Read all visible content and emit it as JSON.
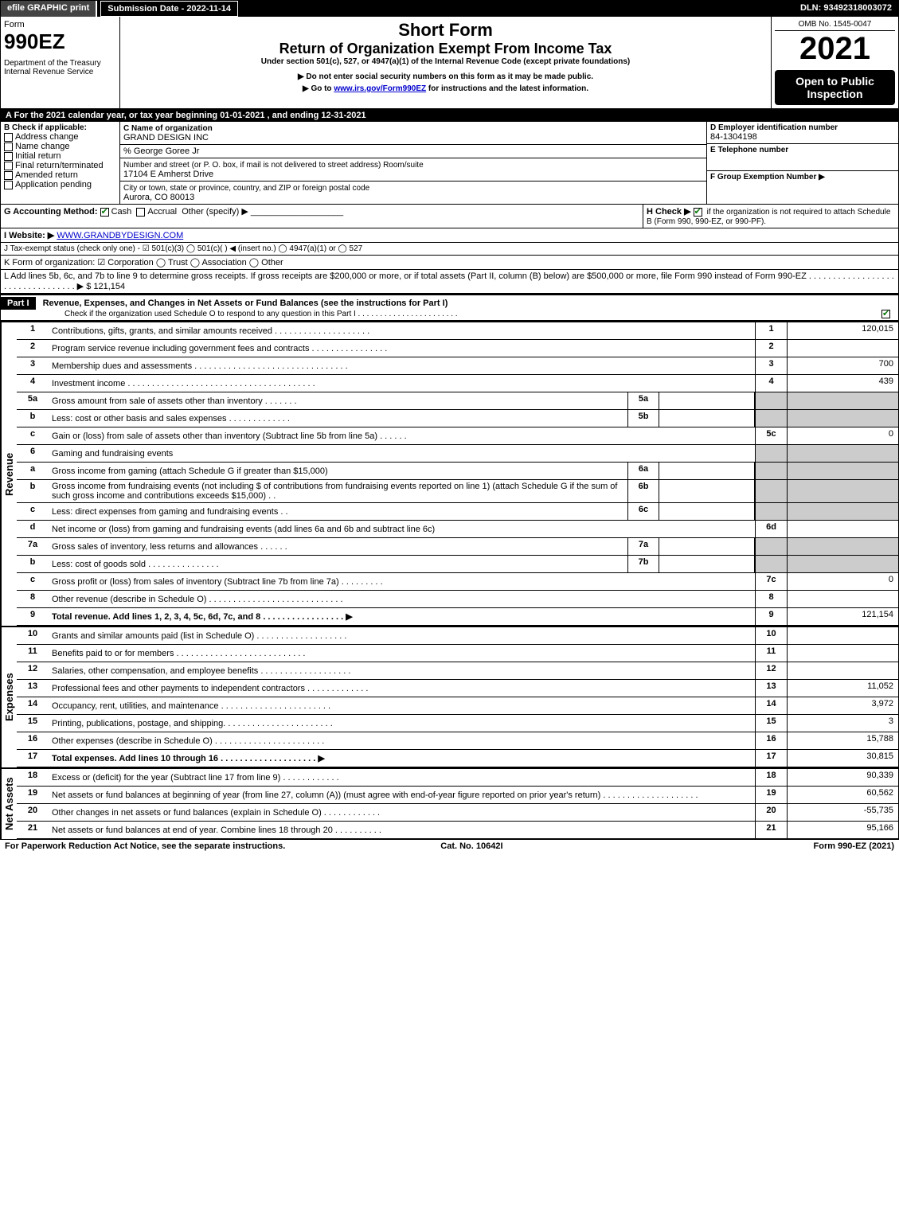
{
  "topbar": {
    "efile": "efile GRAPHIC print",
    "subdate_label": "Submission Date - 2022-11-14",
    "dln": "DLN: 93492318003072"
  },
  "header": {
    "form_word": "Form",
    "form_no": "990EZ",
    "dept": "Department of the Treasury\nInternal Revenue Service",
    "title1": "Short Form",
    "title2": "Return of Organization Exempt From Income Tax",
    "subtitle": "Under section 501(c), 527, or 4947(a)(1) of the Internal Revenue Code (except private foundations)",
    "note1": "▶ Do not enter social security numbers on this form as it may be made public.",
    "note2_pre": "▶ Go to ",
    "note2_link": "www.irs.gov/Form990EZ",
    "note2_post": " for instructions and the latest information.",
    "omb": "OMB No. 1545-0047",
    "year": "2021",
    "open": "Open to Public Inspection"
  },
  "secA": "A  For the 2021 calendar year, or tax year beginning 01-01-2021 , and ending 12-31-2021",
  "secB": {
    "label": "B  Check if applicable:",
    "items": [
      "Address change",
      "Name change",
      "Initial return",
      "Final return/terminated",
      "Amended return",
      "Application pending"
    ]
  },
  "secC": {
    "label": "C Name of organization",
    "org": "GRAND DESIGN INC",
    "care": "% George Goree Jr",
    "addr_label": "Number and street (or P. O. box, if mail is not delivered to street address)        Room/suite",
    "addr": "17104 E Amherst Drive",
    "city_label": "City or town, state or province, country, and ZIP or foreign postal code",
    "city": "Aurora, CO  80013"
  },
  "secD": {
    "label": "D Employer identification number",
    "val": "84-1304198"
  },
  "secE": {
    "label": "E Telephone number",
    "val": ""
  },
  "secF": {
    "label": "F Group Exemption Number  ▶",
    "val": ""
  },
  "secG": {
    "label": "G Accounting Method:",
    "cash": "Cash",
    "accr": "Accrual",
    "other": "Other (specify) ▶"
  },
  "secH": {
    "label": "H   Check ▶",
    "text": "if the organization is not required to attach Schedule B (Form 990, 990-EZ, or 990-PF)."
  },
  "secI": {
    "label": "I Website: ▶",
    "val": "WWW.GRANDBYDESIGN.COM"
  },
  "secJ": "J Tax-exempt status (check only one) - ☑ 501(c)(3)  ◯ 501(c)(  ) ◀ (insert no.)  ◯ 4947(a)(1) or  ◯ 527",
  "secK": "K Form of organization:  ☑ Corporation  ◯ Trust  ◯ Association  ◯ Other",
  "secL": {
    "text": "L Add lines 5b, 6c, and 7b to line 9 to determine gross receipts. If gross receipts are $200,000 or more, or if total assets (Part II, column (B) below) are $500,000 or more, file Form 990 instead of Form 990-EZ . . . . . . . . . . . . . . . . . . . . . . . . . . . . . . . . .  ▶ $",
    "val": "121,154"
  },
  "part1": {
    "hdr": "Part I",
    "title": "Revenue, Expenses, and Changes in Net Assets or Fund Balances (see the instructions for Part I)",
    "sub": "Check if the organization used Schedule O to respond to any question in this Part I . . . . . . . . . . . . . . . . . . . . . . .",
    "chk": true
  },
  "revenue_label": "Revenue",
  "expenses_label": "Expenses",
  "netassets_label": "Net Assets",
  "lines": {
    "1": {
      "n": "1",
      "d": "Contributions, gifts, grants, and similar amounts received . . . . . . . . . . . . . . . . . . . .",
      "c": "1",
      "v": "120,015"
    },
    "2": {
      "n": "2",
      "d": "Program service revenue including government fees and contracts . . . . . . . . . . . . . . . .",
      "c": "2",
      "v": ""
    },
    "3": {
      "n": "3",
      "d": "Membership dues and assessments . . . . . . . . . . . . . . . . . . . . . . . . . . . . . . . .",
      "c": "3",
      "v": "700"
    },
    "4": {
      "n": "4",
      "d": "Investment income . . . . . . . . . . . . . . . . . . . . . . . . . . . . . . . . . . . . . . .",
      "c": "4",
      "v": "439"
    },
    "5a": {
      "n": "5a",
      "d": "Gross amount from sale of assets other than inventory . . . . . . .",
      "sub": "5a"
    },
    "5b": {
      "n": "b",
      "d": "Less: cost or other basis and sales expenses . . . . . . . . . . . . .",
      "sub": "5b"
    },
    "5c": {
      "n": "c",
      "d": "Gain or (loss) from sale of assets other than inventory (Subtract line 5b from line 5a) . . . . . .",
      "c": "5c",
      "v": "0"
    },
    "6": {
      "n": "6",
      "d": "Gaming and fundraising events"
    },
    "6a": {
      "n": "a",
      "d": "Gross income from gaming (attach Schedule G if greater than $15,000)",
      "sub": "6a"
    },
    "6b": {
      "n": "b",
      "d": "Gross income from fundraising events (not including $                   of contributions from fundraising events reported on line 1) (attach Schedule G if the sum of such gross income and contributions exceeds $15,000)   . .",
      "sub": "6b"
    },
    "6c": {
      "n": "c",
      "d": "Less: direct expenses from gaming and fundraising events   . .",
      "sub": "6c"
    },
    "6d": {
      "n": "d",
      "d": "Net income or (loss) from gaming and fundraising events (add lines 6a and 6b and subtract line 6c)",
      "c": "6d",
      "v": ""
    },
    "7a": {
      "n": "7a",
      "d": "Gross sales of inventory, less returns and allowances . . . . . .",
      "sub": "7a"
    },
    "7b": {
      "n": "b",
      "d": "Less: cost of goods sold        . . . . . . . . . . . . . . .",
      "sub": "7b"
    },
    "7c": {
      "n": "c",
      "d": "Gross profit or (loss) from sales of inventory (Subtract line 7b from line 7a) . . . . . . . . .",
      "c": "7c",
      "v": "0"
    },
    "8": {
      "n": "8",
      "d": "Other revenue (describe in Schedule O) . . . . . . . . . . . . . . . . . . . . . . . . . . . .",
      "c": "8",
      "v": ""
    },
    "9": {
      "n": "9",
      "d": "Total revenue. Add lines 1, 2, 3, 4, 5c, 6d, 7c, and 8  . . . . . . . . . . . . . . . . .     ▶",
      "c": "9",
      "v": "121,154",
      "bold": true
    },
    "10": {
      "n": "10",
      "d": "Grants and similar amounts paid (list in Schedule O) . . . . . . . . . . . . . . . . . . .",
      "c": "10",
      "v": ""
    },
    "11": {
      "n": "11",
      "d": "Benefits paid to or for members      . . . . . . . . . . . . . . . . . . . . . . . . . . .",
      "c": "11",
      "v": ""
    },
    "12": {
      "n": "12",
      "d": "Salaries, other compensation, and employee benefits . . . . . . . . . . . . . . . . . . .",
      "c": "12",
      "v": ""
    },
    "13": {
      "n": "13",
      "d": "Professional fees and other payments to independent contractors . . . . . . . . . . . . .",
      "c": "13",
      "v": "11,052"
    },
    "14": {
      "n": "14",
      "d": "Occupancy, rent, utilities, and maintenance . . . . . . . . . . . . . . . . . . . . . . .",
      "c": "14",
      "v": "3,972"
    },
    "15": {
      "n": "15",
      "d": "Printing, publications, postage, and shipping. . . . . . . . . . . . . . . . . . . . . . .",
      "c": "15",
      "v": "3"
    },
    "16": {
      "n": "16",
      "d": "Other expenses (describe in Schedule O)    . . . . . . . . . . . . . . . . . . . . . . .",
      "c": "16",
      "v": "15,788"
    },
    "17": {
      "n": "17",
      "d": "Total expenses. Add lines 10 through 16     . . . . . . . . . . . . . . . . . . . .   ▶",
      "c": "17",
      "v": "30,815",
      "bold": true
    },
    "18": {
      "n": "18",
      "d": "Excess or (deficit) for the year (Subtract line 17 from line 9)        . . . . . . . . . . . .",
      "c": "18",
      "v": "90,339"
    },
    "19": {
      "n": "19",
      "d": "Net assets or fund balances at beginning of year (from line 27, column (A)) (must agree with end-of-year figure reported on prior year's return) . . . . . . . . . . . . . . . . . . . .",
      "c": "19",
      "v": "60,562"
    },
    "20": {
      "n": "20",
      "d": "Other changes in net assets or fund balances (explain in Schedule O) . . . . . . . . . . . .",
      "c": "20",
      "v": "-55,735"
    },
    "21": {
      "n": "21",
      "d": "Net assets or fund balances at end of year. Combine lines 18 through 20 . . . . . . . . . .",
      "c": "21",
      "v": "95,166"
    }
  },
  "footer": {
    "left": "For Paperwork Reduction Act Notice, see the separate instructions.",
    "mid": "Cat. No. 10642I",
    "right": "Form 990-EZ (2021)"
  }
}
